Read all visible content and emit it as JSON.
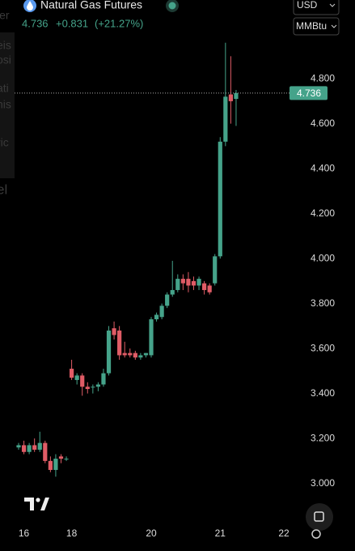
{
  "header": {
    "symbol": "Natural Gas Futures",
    "price": "4.736",
    "change": "+0.831",
    "change_pct": "(+21.27%)",
    "currency": "USD",
    "unit": "MMBtu"
  },
  "background_fragments": [
    "ler",
    "eis",
    "osi",
    "ati",
    "his",
    "ric",
    "el"
  ],
  "chart_data": {
    "type": "candlestick",
    "categories": [
      null,
      "16",
      null,
      null,
      null,
      null,
      null,
      null,
      null,
      null,
      "18",
      null,
      null,
      null,
      null,
      null,
      null,
      null,
      null,
      null,
      null,
      null,
      null,
      null,
      null,
      "20",
      null,
      null,
      null,
      null,
      null,
      null,
      null,
      null,
      null,
      null,
      null,
      null,
      "21",
      null,
      null,
      null,
      null,
      null,
      null,
      null,
      null,
      null,
      null,
      null,
      "22"
    ],
    "open": [
      3.16,
      3.17,
      3.14,
      3.17,
      3.15,
      3.18,
      3.1,
      3.06,
      3.12,
      3.11,
      3.51,
      3.46,
      3.48,
      3.43,
      3.43,
      3.43,
      3.44,
      3.49,
      3.69,
      3.68,
      3.58,
      3.58,
      3.58,
      3.56,
      3.57,
      3.57,
      3.73,
      3.74,
      3.79,
      3.84,
      3.86,
      3.91,
      3.91,
      3.9,
      3.88,
      3.89,
      3.88,
      3.89,
      4.01,
      4.52,
      4.73,
      4.71,
      null,
      null,
      null,
      null,
      null,
      null,
      null,
      null,
      null
    ],
    "high": [
      3.18,
      3.19,
      3.18,
      3.2,
      3.23,
      3.19,
      3.12,
      3.13,
      3.13,
      3.12,
      3.55,
      3.49,
      3.49,
      3.45,
      3.44,
      3.45,
      3.51,
      3.7,
      3.72,
      3.7,
      3.63,
      3.6,
      3.59,
      3.58,
      3.58,
      3.74,
      3.76,
      3.8,
      3.85,
      3.99,
      3.93,
      3.93,
      3.94,
      3.92,
      3.92,
      3.9,
      3.89,
      4.02,
      4.54,
      4.96,
      4.9,
      4.75,
      null,
      null,
      null,
      null,
      null,
      null,
      null,
      null,
      null
    ],
    "low": [
      3.15,
      3.13,
      3.13,
      3.14,
      3.14,
      3.09,
      3.05,
      3.03,
      3.09,
      3.1,
      3.46,
      3.44,
      3.39,
      3.4,
      3.4,
      3.41,
      3.43,
      3.48,
      3.64,
      3.55,
      3.56,
      3.56,
      3.55,
      3.55,
      3.56,
      3.56,
      3.72,
      3.73,
      3.78,
      3.83,
      3.85,
      3.86,
      3.85,
      3.86,
      3.86,
      3.84,
      3.84,
      3.88,
      4.0,
      4.5,
      4.6,
      4.59,
      null,
      null,
      null,
      null,
      null,
      null,
      null,
      null,
      null
    ],
    "close": [
      3.17,
      3.14,
      3.17,
      3.15,
      3.18,
      3.1,
      3.06,
      3.11,
      3.11,
      3.11,
      3.47,
      3.48,
      3.43,
      3.42,
      3.43,
      3.44,
      3.49,
      3.68,
      3.66,
      3.57,
      3.57,
      3.57,
      3.56,
      3.57,
      3.58,
      3.73,
      3.75,
      3.79,
      3.84,
      3.86,
      3.91,
      3.89,
      3.88,
      3.88,
      3.91,
      3.86,
      3.85,
      4.01,
      4.52,
      4.72,
      4.7,
      4.736,
      null,
      null,
      null,
      null,
      null,
      null,
      null,
      null,
      null
    ],
    "up_color": "#45a38a",
    "down_color": "#e05c66",
    "last_price": 4.736,
    "ylim": [
      2.84,
      5.15
    ],
    "yticks": [
      {
        "value": 3,
        "label": "3.000"
      },
      {
        "value": 3.2,
        "label": "3.200"
      },
      {
        "value": 3.4,
        "label": "3.400"
      },
      {
        "value": 3.6,
        "label": "3.600"
      },
      {
        "value": 3.8,
        "label": "3.800"
      },
      {
        "value": 4,
        "label": "4.000"
      },
      {
        "value": 4.2,
        "label": "4.200"
      },
      {
        "value": 4.4,
        "label": "4.400"
      },
      {
        "value": 4.6,
        "label": "4.600"
      },
      {
        "value": 4.8,
        "label": "4.800"
      }
    ],
    "grid": false
  }
}
